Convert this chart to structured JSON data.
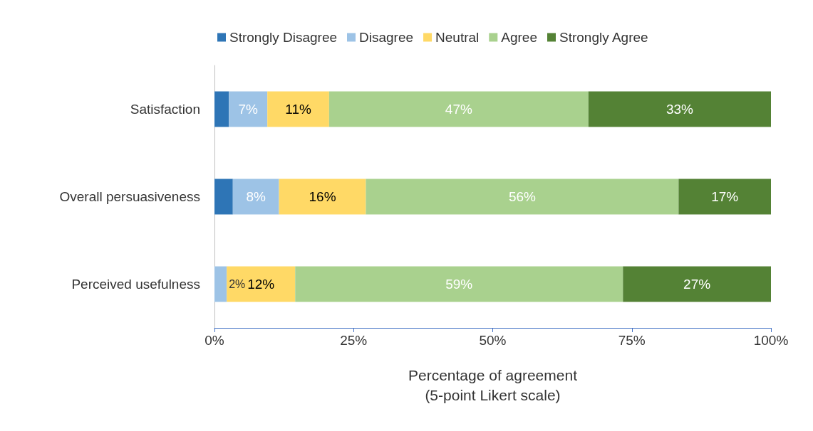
{
  "chart_data": {
    "type": "bar",
    "orientation": "horizontal",
    "stacked": true,
    "categories": [
      "Satisfaction",
      "Overall persuasiveness",
      "Perceived usefulness"
    ],
    "series": [
      {
        "name": "Strongly Disagree",
        "color": "#2e75b6",
        "values": [
          2.6,
          3.3,
          0
        ],
        "value_labels": [
          null,
          null,
          null
        ]
      },
      {
        "name": "Disagree",
        "color": "#9dc3e6",
        "values": [
          6.9,
          8.3,
          2.2
        ],
        "value_labels": [
          "7%",
          "8%",
          "2%"
        ]
      },
      {
        "name": "Neutral",
        "color": "#ffd966",
        "values": [
          11.1,
          15.6,
          12.3
        ],
        "value_labels": [
          "11%",
          "16%",
          "12%"
        ]
      },
      {
        "name": "Agree",
        "color": "#a9d18e",
        "values": [
          46.6,
          56.2,
          58.9
        ],
        "value_labels": [
          "47%",
          "56%",
          "59%"
        ]
      },
      {
        "name": "Strongly Agree",
        "color": "#548235",
        "values": [
          32.8,
          16.6,
          26.6
        ],
        "value_labels": [
          "33%",
          "17%",
          "27%"
        ]
      }
    ],
    "xlabel": "Percentage of agreement\n(5-point Likert scale)",
    "xlim": [
      0,
      100
    ],
    "xticks": [
      {
        "value": 0,
        "label": "0%"
      },
      {
        "value": 25,
        "label": "25%"
      },
      {
        "value": 50,
        "label": "50%"
      },
      {
        "value": 75,
        "label": "75%"
      },
      {
        "value": 100,
        "label": "100%"
      }
    ],
    "grid": false,
    "legend": "top"
  }
}
